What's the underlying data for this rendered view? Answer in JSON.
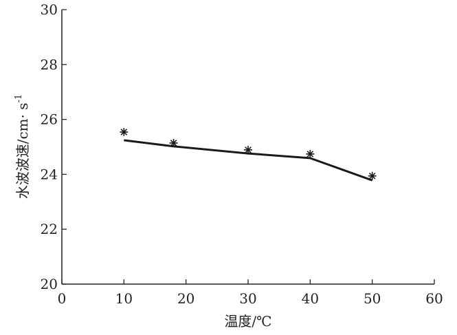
{
  "chart_data": {
    "type": "line",
    "title": "",
    "xlabel": "温度/℃",
    "ylabel": "水波波速/cm· s",
    "ylabel_superscript": "-1",
    "xlim": [
      0,
      60
    ],
    "ylim": [
      20,
      30
    ],
    "xticks": [
      0,
      10,
      20,
      30,
      40,
      50,
      60
    ],
    "yticks": [
      20,
      22,
      24,
      26,
      28,
      30
    ],
    "grid": false,
    "series": [
      {
        "kind": "scatter",
        "marker": "asterisk",
        "x": [
          10,
          18,
          30,
          40,
          50
        ],
        "y": [
          25.54,
          25.14,
          24.89,
          24.74,
          23.94
        ]
      },
      {
        "kind": "line",
        "x": [
          10,
          18,
          30,
          40,
          50
        ],
        "y": [
          25.24,
          25.02,
          24.76,
          24.59,
          23.78
        ]
      }
    ],
    "colors": {
      "line": "#1a1a1a",
      "axis": "#222222"
    }
  }
}
